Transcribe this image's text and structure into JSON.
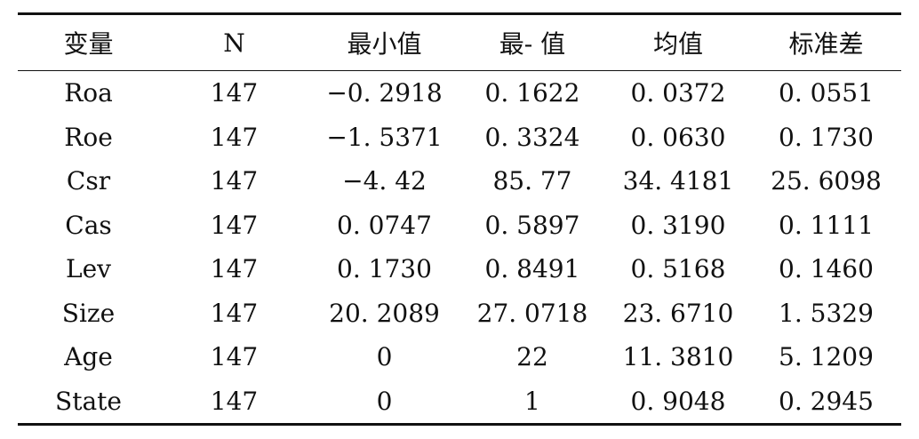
{
  "table": {
    "headers": [
      "变量",
      "N",
      "最小值",
      "最- 值",
      "均值",
      "标准差"
    ],
    "rows": [
      [
        "Roa",
        "147",
        "−0. 2918",
        "0. 1622",
        "0. 0372",
        "0. 0551"
      ],
      [
        "Roe",
        "147",
        "−1. 5371",
        "0. 3324",
        "0. 0630",
        "0. 1730"
      ],
      [
        "Csr",
        "147",
        "−4. 42",
        "85. 77",
        "34. 4181",
        "25. 6098"
      ],
      [
        "Cas",
        "147",
        "0. 0747",
        "0. 5897",
        "0. 3190",
        "0. 1111"
      ],
      [
        "Lev",
        "147",
        "0. 1730",
        "0. 8491",
        "0. 5168",
        "0. 1460"
      ],
      [
        "Size",
        "147",
        "20. 2089",
        "27. 0718",
        "23. 6710",
        "1. 5329"
      ],
      [
        "Age",
        "147",
        "0",
        "22",
        "11. 3810",
        "5. 1209"
      ],
      [
        "State",
        "147",
        "0",
        "1",
        "0. 9048",
        "0. 2945"
      ]
    ]
  }
}
